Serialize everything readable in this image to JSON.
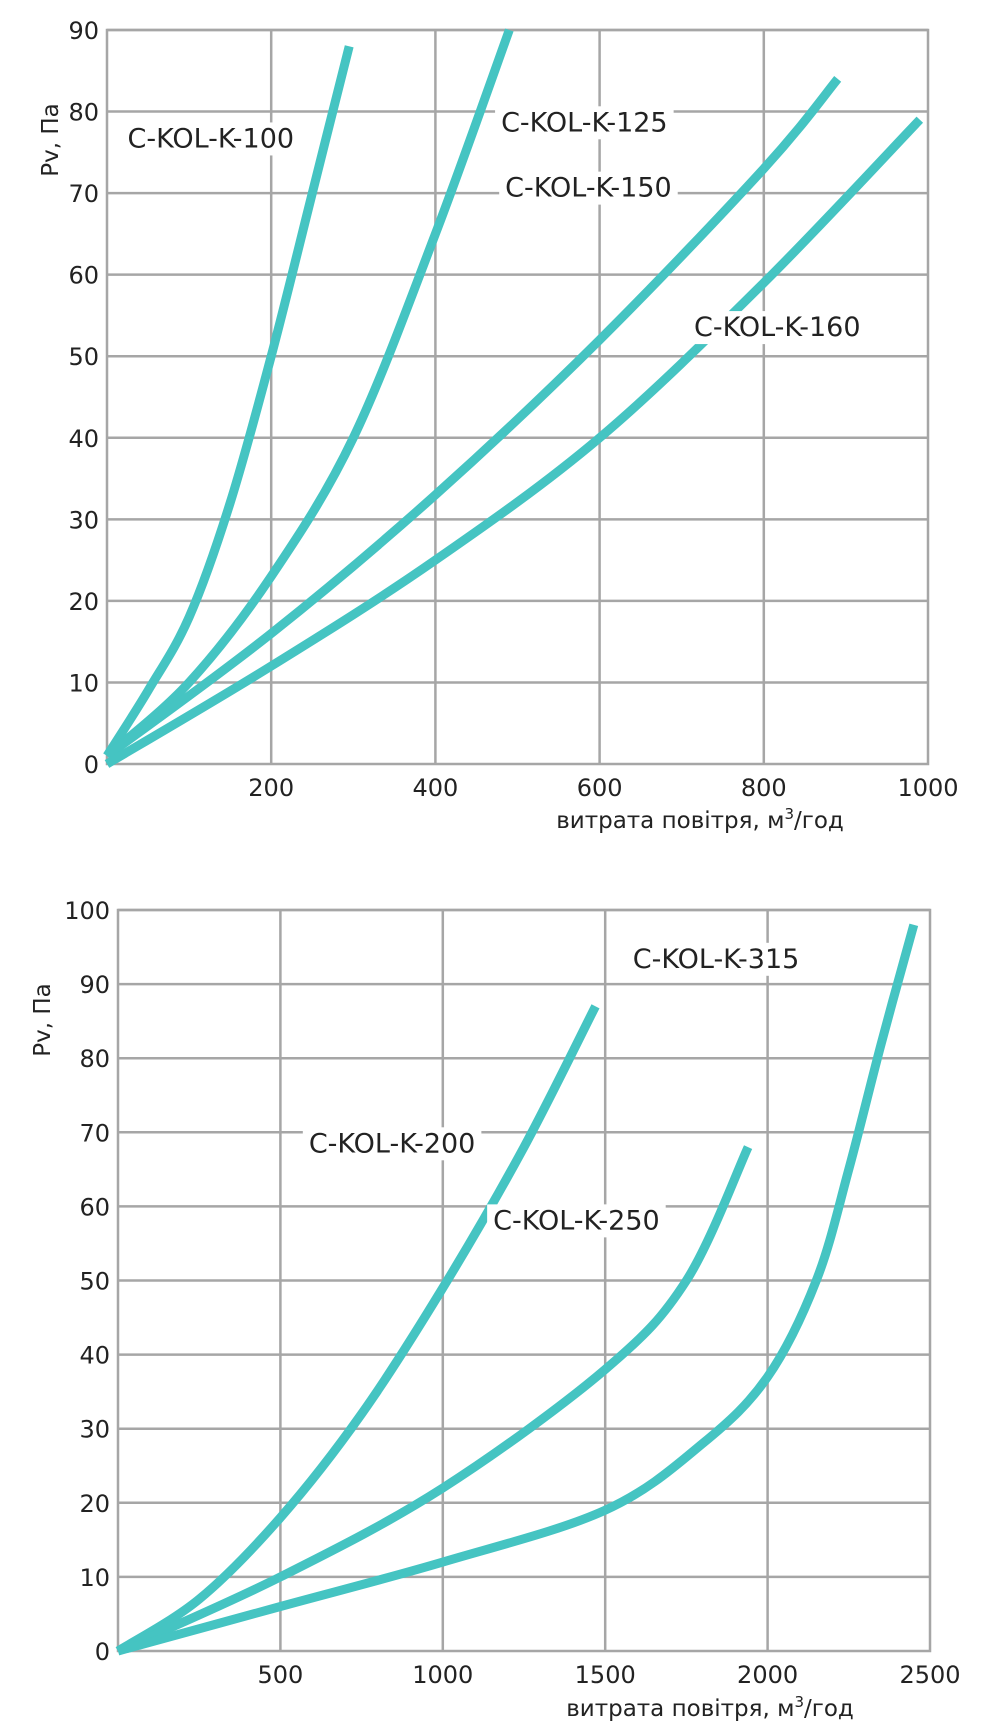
{
  "chart_data": [
    {
      "type": "line",
      "title": "",
      "xlabel": "витрата повітря, м",
      "xlabel_sup": "3",
      "xlabel_tail": "/год",
      "ylabel": "Pv, Па",
      "xlim": [
        0,
        1000
      ],
      "ylim": [
        0,
        90
      ],
      "x_ticks": [
        200,
        400,
        600,
        800,
        1000
      ],
      "y_ticks": [
        0,
        10,
        20,
        30,
        40,
        50,
        60,
        70,
        80,
        90
      ],
      "grid": true,
      "line_color": "#45c4c2",
      "series": [
        {
          "name": "C-KOL-K-100",
          "points": [
            [
              0,
              1
            ],
            [
              50,
              9
            ],
            [
              100,
              18
            ],
            [
              150,
              32
            ],
            [
              200,
              50
            ],
            [
              250,
              70
            ],
            [
              295,
              88
            ]
          ]
        },
        {
          "name": "C-KOL-K-125",
          "points": [
            [
              0,
              1
            ],
            [
              100,
              10
            ],
            [
              200,
              23
            ],
            [
              300,
              40
            ],
            [
              400,
              65
            ],
            [
              490,
              90
            ]
          ]
        },
        {
          "name": "C-KOL-K-150",
          "points": [
            [
              0,
              1
            ],
            [
              200,
              16
            ],
            [
              400,
              33
            ],
            [
              600,
              52
            ],
            [
              800,
              73
            ],
            [
              890,
              84
            ]
          ]
        },
        {
          "name": "C-KOL-K-160",
          "points": [
            [
              0,
              0
            ],
            [
              200,
              12
            ],
            [
              400,
              25
            ],
            [
              600,
              40
            ],
            [
              800,
              59
            ],
            [
              990,
              79
            ]
          ]
        }
      ]
    },
    {
      "type": "line",
      "title": "",
      "xlabel": "витрата повітря, м",
      "xlabel_sup": "3",
      "xlabel_tail": "/год",
      "ylabel": "Pv, Па",
      "xlim": [
        0,
        2500
      ],
      "ylim": [
        0,
        100
      ],
      "x_ticks": [
        500,
        1000,
        1500,
        2000,
        2500
      ],
      "y_ticks": [
        0,
        10,
        20,
        30,
        40,
        50,
        60,
        70,
        80,
        90,
        100
      ],
      "grid": true,
      "line_color": "#45c4c2",
      "series": [
        {
          "name": "C-KOL-K-200",
          "points": [
            [
              0,
              0
            ],
            [
              250,
              7
            ],
            [
              500,
              18
            ],
            [
              750,
              32
            ],
            [
              1000,
              49
            ],
            [
              1250,
              68
            ],
            [
              1470,
              87
            ]
          ]
        },
        {
          "name": "C-KOL-K-250",
          "points": [
            [
              0,
              0
            ],
            [
              500,
              10
            ],
            [
              1000,
              22
            ],
            [
              1500,
              38
            ],
            [
              1750,
              50
            ],
            [
              1940,
              68
            ]
          ]
        },
        {
          "name": "C-KOL-K-315",
          "points": [
            [
              0,
              0
            ],
            [
              500,
              6
            ],
            [
              1000,
              12
            ],
            [
              1500,
              19
            ],
            [
              1800,
              28
            ],
            [
              2000,
              37
            ],
            [
              2150,
              50
            ],
            [
              2250,
              65
            ],
            [
              2350,
              82
            ],
            [
              2450,
              98
            ]
          ]
        }
      ]
    }
  ]
}
